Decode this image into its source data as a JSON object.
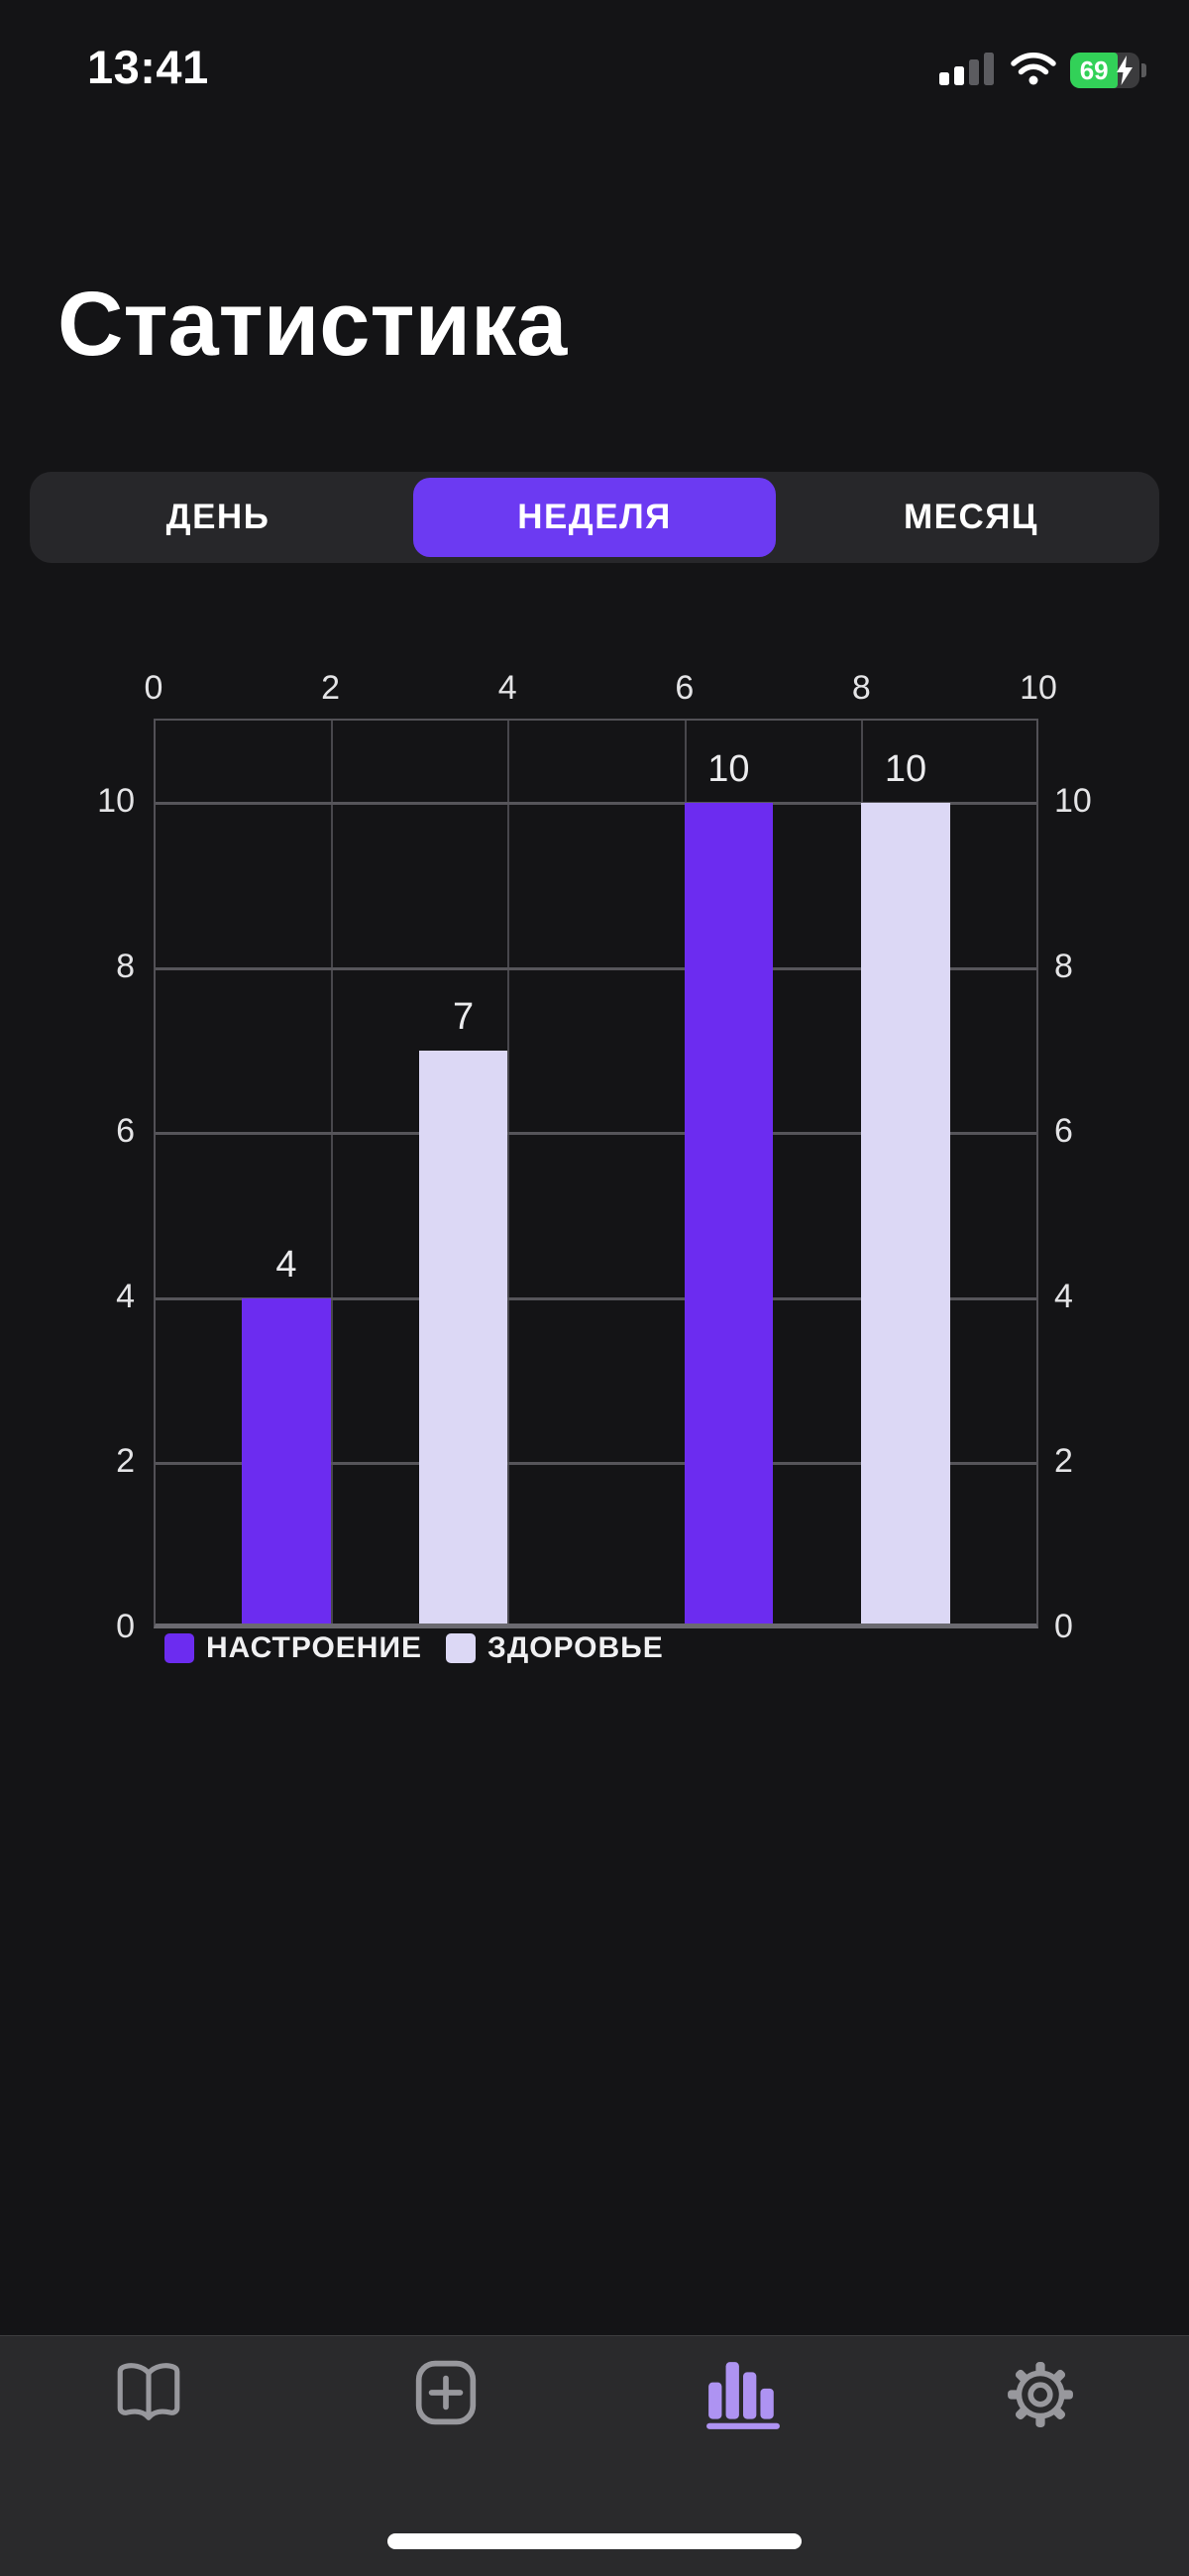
{
  "status_bar": {
    "time": "13:41",
    "battery_percent": "69"
  },
  "header": {
    "title": "Статистика"
  },
  "period_tabs": {
    "items": [
      {
        "label": "ДЕНЬ",
        "selected": false
      },
      {
        "label": "НЕДЕЛЯ",
        "selected": true
      },
      {
        "label": "МЕСЯЦ",
        "selected": false
      }
    ]
  },
  "colors": {
    "accent_purple": "#6c3af2",
    "bar_mood": "#6c2cf0",
    "bar_health": "#dcd8f5",
    "battery_green": "#32d158",
    "active_tab_icon": "#ae93f2"
  },
  "chart_data": {
    "type": "bar",
    "title": "",
    "x_axis": {
      "position": "top",
      "ticks": [
        "0",
        "2",
        "4",
        "6",
        "8",
        "10"
      ],
      "range": [
        0,
        10
      ]
    },
    "y_axis": {
      "position": "both-sides",
      "ticks": [
        "0",
        "2",
        "4",
        "6",
        "8",
        "10"
      ],
      "range": [
        0,
        10
      ]
    },
    "grid": true,
    "legend_position": "bottom-left",
    "series": [
      {
        "name": "НАСТРОЕНИЕ",
        "color": "#6c2cf0"
      },
      {
        "name": "ЗДОРОВЬЕ",
        "color": "#dcd8f5"
      }
    ],
    "bars": [
      {
        "series": 0,
        "value": 4,
        "label": "4",
        "x_start": 1,
        "x_end": 2
      },
      {
        "series": 1,
        "value": 7,
        "label": "7",
        "x_start": 3,
        "x_end": 4
      },
      {
        "series": 0,
        "value": 10,
        "label": "10",
        "x_start": 6,
        "x_end": 7
      },
      {
        "series": 1,
        "value": 10,
        "label": "10",
        "x_start": 8,
        "x_end": 9
      }
    ]
  },
  "tab_bar": {
    "items": [
      {
        "id": "journal",
        "icon": "book-icon",
        "active": false
      },
      {
        "id": "add-entry",
        "icon": "plus-square-icon",
        "active": false
      },
      {
        "id": "statistics",
        "icon": "bar-chart-icon",
        "active": true
      },
      {
        "id": "settings",
        "icon": "gear-icon",
        "active": false
      }
    ]
  }
}
